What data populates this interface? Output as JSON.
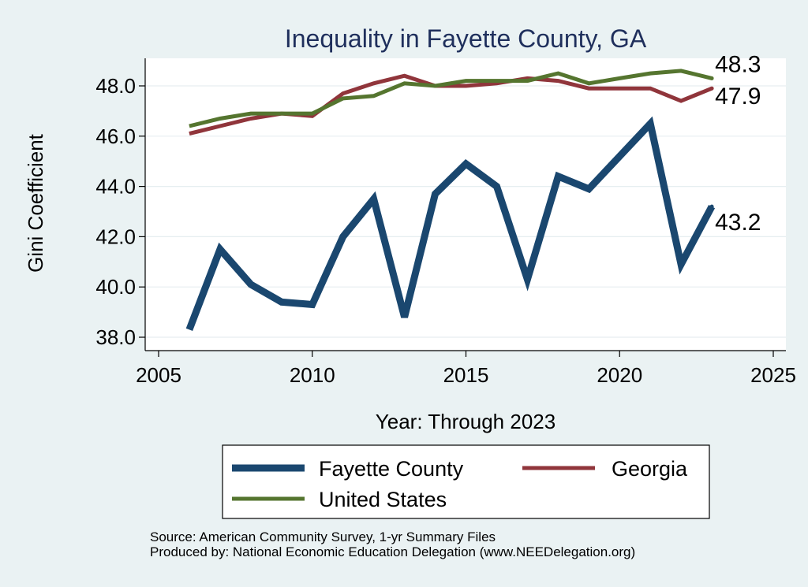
{
  "chart_data": {
    "type": "line",
    "title": "Inequality in Fayette County, GA",
    "xlabel": "Year: Through 2023",
    "ylabel": "Gini Coefficient",
    "xlim": [
      2005,
      2025
    ],
    "ylim": [
      37.5,
      49.2
    ],
    "x_ticks": [
      2005,
      2010,
      2015,
      2020,
      2025
    ],
    "y_ticks": [
      38.0,
      40.0,
      42.0,
      44.0,
      46.0,
      48.0
    ],
    "y_tick_labels": [
      "38.0",
      "40.0",
      "42.0",
      "44.0",
      "46.0",
      "48.0"
    ],
    "grid": "horizontal",
    "legend_position": "bottom",
    "x": [
      2006,
      2007,
      2008,
      2009,
      2010,
      2011,
      2012,
      2013,
      2014,
      2015,
      2016,
      2017,
      2018,
      2019,
      2020,
      2021,
      2022,
      2023
    ],
    "series": [
      {
        "name": "Fayette County",
        "color": "#1a476f",
        "values": [
          38.3,
          41.5,
          40.1,
          39.4,
          39.3,
          42.0,
          43.5,
          38.8,
          43.7,
          44.9,
          44.0,
          40.3,
          44.4,
          43.9,
          45.2,
          46.5,
          40.9,
          43.2
        ],
        "end_label": "43.2"
      },
      {
        "name": "Georgia",
        "color": "#90353b",
        "values": [
          46.1,
          46.4,
          46.7,
          46.9,
          46.8,
          47.7,
          48.1,
          48.4,
          48.0,
          48.0,
          48.1,
          48.3,
          48.2,
          47.9,
          47.9,
          47.9,
          47.4,
          47.9
        ],
        "end_label": "47.9"
      },
      {
        "name": "United States",
        "color": "#55752f",
        "values": [
          46.4,
          46.7,
          46.9,
          46.9,
          46.9,
          47.5,
          47.6,
          48.1,
          48.0,
          48.2,
          48.2,
          48.2,
          48.5,
          48.1,
          48.3,
          48.5,
          48.6,
          48.3
        ],
        "end_label": "48.3"
      }
    ]
  },
  "source": {
    "line1": "Source: American Community Survey, 1-yr Summary Files",
    "line2": "Produced by: National Economic Education Delegation (www.NEEDelegation.org)"
  }
}
